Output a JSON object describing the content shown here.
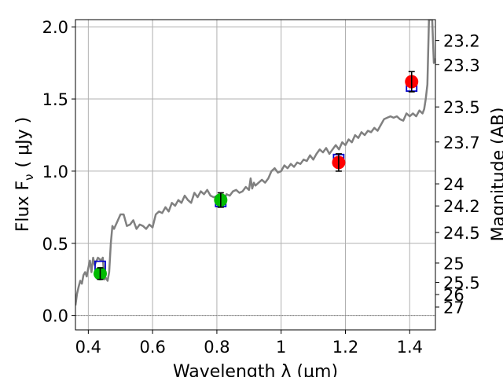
{
  "chart_data": {
    "type": "scatter",
    "xlabel": "Wavelength  λ (μm)",
    "ylabel": "Flux  F",
    "ylabel_sub": "ν",
    "ylabel_unit": "( μJy )",
    "y2label": "Magnitude (AB)",
    "xlim": [
      0.36,
      1.48
    ],
    "ylim": [
      -0.1,
      2.05
    ],
    "grid": true,
    "x_ticks": [
      {
        "v": 0.4,
        "label": "0.4"
      },
      {
        "v": 0.6,
        "label": "0.6"
      },
      {
        "v": 0.8,
        "label": "0.8"
      },
      {
        "v": 1.0,
        "label": "1"
      },
      {
        "v": 1.2,
        "label": "1.2"
      },
      {
        "v": 1.4,
        "label": "1.4"
      }
    ],
    "y_ticks": [
      {
        "v": 0.0,
        "label": "0.0"
      },
      {
        "v": 0.5,
        "label": "0.5"
      },
      {
        "v": 1.0,
        "label": "1.0"
      },
      {
        "v": 1.5,
        "label": "1.5"
      },
      {
        "v": 2.0,
        "label": "2.0"
      }
    ],
    "y2_ticks": [
      {
        "label": "23.2",
        "flux": 1.905
      },
      {
        "label": "23.3",
        "flux": 1.738
      },
      {
        "label": "23.5",
        "flux": 1.445
      },
      {
        "label": "23.7",
        "flux": 1.202
      },
      {
        "label": "24",
        "flux": 0.912
      },
      {
        "label": "24.2",
        "flux": 0.759
      },
      {
        "label": "24.5",
        "flux": 0.575
      },
      {
        "label": "25",
        "flux": 0.363
      },
      {
        "label": "25.5",
        "flux": 0.229
      },
      {
        "label": "26",
        "flux": 0.145
      },
      {
        "label": "27",
        "flux": 0.058
      }
    ],
    "sed_model": {
      "color": "#808080",
      "x": [
        0.36,
        0.365,
        0.37,
        0.375,
        0.38,
        0.385,
        0.39,
        0.395,
        0.4,
        0.405,
        0.41,
        0.415,
        0.42,
        0.43,
        0.44,
        0.445,
        0.45,
        0.455,
        0.46,
        0.465,
        0.47,
        0.475,
        0.48,
        0.49,
        0.5,
        0.51,
        0.52,
        0.53,
        0.54,
        0.55,
        0.56,
        0.57,
        0.58,
        0.59,
        0.6,
        0.61,
        0.62,
        0.63,
        0.64,
        0.65,
        0.66,
        0.67,
        0.68,
        0.69,
        0.7,
        0.71,
        0.72,
        0.73,
        0.74,
        0.75,
        0.76,
        0.77,
        0.78,
        0.79,
        0.8,
        0.81,
        0.82,
        0.83,
        0.84,
        0.85,
        0.86,
        0.87,
        0.88,
        0.89,
        0.9,
        0.905,
        0.91,
        0.915,
        0.92,
        0.93,
        0.94,
        0.95,
        0.96,
        0.97,
        0.98,
        0.99,
        1.0,
        1.01,
        1.02,
        1.03,
        1.04,
        1.05,
        1.06,
        1.07,
        1.08,
        1.09,
        1.1,
        1.11,
        1.12,
        1.13,
        1.14,
        1.15,
        1.16,
        1.17,
        1.18,
        1.19,
        1.2,
        1.21,
        1.22,
        1.23,
        1.24,
        1.25,
        1.26,
        1.27,
        1.28,
        1.29,
        1.3,
        1.31,
        1.32,
        1.33,
        1.34,
        1.35,
        1.36,
        1.37,
        1.38,
        1.39,
        1.4,
        1.41,
        1.42,
        1.43,
        1.44,
        1.445,
        1.45,
        1.455,
        1.46,
        1.465,
        1.47,
        1.475,
        1.48
      ],
      "y": [
        0.07,
        0.15,
        0.2,
        0.24,
        0.22,
        0.28,
        0.3,
        0.27,
        0.33,
        0.38,
        0.3,
        0.4,
        0.35,
        0.4,
        0.38,
        0.4,
        0.25,
        0.26,
        0.24,
        0.3,
        0.5,
        0.62,
        0.6,
        0.65,
        0.7,
        0.7,
        0.62,
        0.63,
        0.66,
        0.6,
        0.63,
        0.62,
        0.6,
        0.63,
        0.61,
        0.7,
        0.72,
        0.71,
        0.75,
        0.72,
        0.78,
        0.76,
        0.8,
        0.78,
        0.83,
        0.8,
        0.78,
        0.85,
        0.82,
        0.86,
        0.84,
        0.87,
        0.83,
        0.82,
        0.82,
        0.84,
        0.8,
        0.84,
        0.83,
        0.86,
        0.87,
        0.85,
        0.86,
        0.89,
        0.87,
        0.95,
        0.88,
        0.92,
        0.9,
        0.92,
        0.94,
        0.92,
        0.95,
        1.0,
        1.02,
        0.99,
        1.0,
        1.04,
        1.02,
        1.05,
        1.03,
        1.06,
        1.05,
        1.08,
        1.07,
        1.11,
        1.08,
        1.12,
        1.15,
        1.13,
        1.16,
        1.12,
        1.15,
        1.18,
        1.15,
        1.2,
        1.18,
        1.22,
        1.2,
        1.25,
        1.23,
        1.27,
        1.25,
        1.28,
        1.27,
        1.3,
        1.28,
        1.32,
        1.36,
        1.37,
        1.38,
        1.37,
        1.38,
        1.36,
        1.35,
        1.4,
        1.38,
        1.4,
        1.38,
        1.42,
        1.4,
        1.43,
        1.5,
        1.6,
        2.05,
        2.05,
        2.05,
        1.75,
        1.78
      ]
    },
    "model_photometry": {
      "color": "#0000cc",
      "marker": "open-square",
      "points": [
        {
          "x": 0.437,
          "y": 0.34
        },
        {
          "x": 0.812,
          "y": 0.79
        },
        {
          "x": 1.179,
          "y": 1.08
        },
        {
          "x": 1.406,
          "y": 1.59
        }
      ]
    },
    "observed_photometry": [
      {
        "x": 0.437,
        "y": 0.29,
        "err": 0.04,
        "color": "#00bb00"
      },
      {
        "x": 0.812,
        "y": 0.8,
        "err": 0.05,
        "color": "#00bb00"
      },
      {
        "x": 1.179,
        "y": 1.06,
        "err": 0.06,
        "color": "#ff0000"
      },
      {
        "x": 1.406,
        "y": 1.62,
        "err": 0.07,
        "color": "#ff0000"
      }
    ]
  }
}
